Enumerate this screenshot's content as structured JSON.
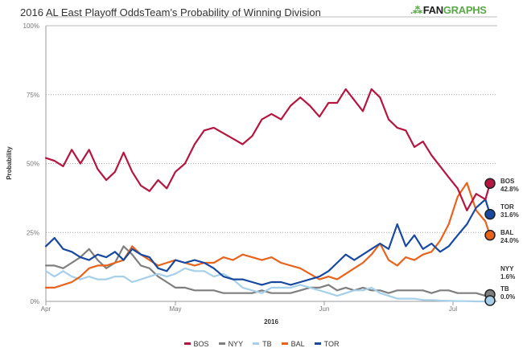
{
  "header": {
    "title": "2016 AL East Playoff OddsTeam's Probability of Winning Division",
    "logo_fan": "FAN",
    "logo_graphs": "GRAPHS",
    "logo_mark": ".⁂"
  },
  "chart_data": {
    "type": "line",
    "title": "2016 AL East Playoff OddsTeam's Probability of Winning Division",
    "xlabel": "2016",
    "ylabel": "Probability",
    "ylim": [
      0,
      100
    ],
    "yticks": [
      "0%",
      "25%",
      "50%",
      "75%",
      "100%"
    ],
    "ytick_values": [
      0,
      25,
      50,
      75,
      100
    ],
    "xticks": [
      {
        "label": "Apr",
        "day": 0
      },
      {
        "label": "May",
        "day": 30
      },
      {
        "label": "Jun",
        "day": 61
      },
      {
        "label": "Jul",
        "day": 91
      }
    ],
    "xlim_days": [
      0,
      99
    ],
    "x_days": [
      0,
      2,
      4,
      6,
      8,
      10,
      12,
      14,
      16,
      18,
      20,
      22,
      24,
      26,
      28,
      30,
      32,
      34,
      36,
      38,
      40,
      42,
      44,
      46,
      48,
      50,
      52,
      54,
      56,
      58,
      60,
      62,
      64,
      66,
      68,
      70,
      72,
      74,
      76,
      78,
      80,
      82,
      84,
      86,
      88,
      90,
      92,
      94,
      96,
      98,
      99
    ],
    "grid": "horizontal-dotted",
    "legend_position": "bottom-center",
    "series": [
      {
        "name": "BOS",
        "color": "#b5163f",
        "values": [
          52,
          51,
          49,
          55,
          50,
          55,
          48,
          44,
          47,
          54,
          47,
          42,
          40,
          44,
          41,
          47,
          50,
          57,
          62,
          63,
          61,
          59,
          57,
          60,
          66,
          68,
          66,
          71,
          74,
          71,
          67,
          72,
          72,
          77,
          73,
          69,
          77,
          74,
          66,
          63,
          62,
          56,
          58,
          53,
          49,
          45,
          41,
          33,
          39,
          37,
          42.8
        ],
        "end_label": "42.8%"
      },
      {
        "name": "NYY",
        "color": "#7f7f7f",
        "values": [
          13,
          13,
          12,
          14,
          16,
          19,
          15,
          12,
          14,
          20,
          17,
          13,
          12,
          9,
          7,
          5,
          5,
          4,
          4,
          4,
          3,
          3,
          3,
          3,
          4,
          3,
          3,
          3,
          4,
          5,
          5,
          6,
          4,
          5,
          4,
          5,
          4,
          4,
          3,
          4,
          4,
          4,
          4,
          3,
          4,
          4,
          3,
          3,
          3,
          2,
          1.6
        ],
        "end_label": "1.6%"
      },
      {
        "name": "TB",
        "color": "#a6cfe9",
        "values": [
          11,
          9,
          11,
          9,
          8,
          9,
          8,
          8,
          9,
          9,
          7,
          8,
          9,
          10,
          9,
          10,
          12,
          11,
          11,
          9,
          10,
          8,
          5,
          4,
          3,
          5,
          5,
          5,
          6,
          5,
          4,
          3,
          2,
          3,
          4,
          4,
          5,
          3,
          2,
          1,
          1,
          1,
          0.5,
          0.5,
          0.3,
          0.2,
          0.1,
          0.1,
          0,
          0,
          0.0
        ],
        "end_label": "0.0%"
      },
      {
        "name": "BAL",
        "color": "#e8631c",
        "values": [
          5,
          5,
          6,
          7,
          9,
          12,
          13,
          13,
          14,
          15,
          20,
          17,
          15,
          13,
          14,
          15,
          14,
          13,
          14,
          14,
          16,
          15,
          17,
          16,
          15,
          16,
          14,
          13,
          12,
          10,
          8,
          9,
          8,
          10,
          12,
          14,
          17,
          21,
          15,
          13,
          16,
          15,
          17,
          18,
          22,
          28,
          38,
          43,
          33,
          29,
          24.0
        ],
        "end_label": "24.0%"
      },
      {
        "name": "TOR",
        "color": "#1848a0",
        "values": [
          20,
          23,
          19,
          18,
          16,
          15,
          17,
          16,
          18,
          15,
          19,
          17,
          16,
          12,
          11,
          15,
          14,
          15,
          14,
          12,
          9,
          8,
          8,
          7,
          6,
          7,
          7,
          6,
          7,
          8,
          9,
          11,
          14,
          17,
          15,
          17,
          19,
          21,
          19,
          28,
          20,
          24,
          19,
          21,
          18,
          20,
          24,
          28,
          34,
          37,
          31.6
        ],
        "end_label": "31.6%"
      }
    ]
  },
  "legend": [
    {
      "label": "BOS",
      "color": "#b5163f"
    },
    {
      "label": "NYY",
      "color": "#7f7f7f"
    },
    {
      "label": "TB",
      "color": "#a6cfe9"
    },
    {
      "label": "BAL",
      "color": "#e8631c"
    },
    {
      "label": "TOR",
      "color": "#1848a0"
    }
  ]
}
